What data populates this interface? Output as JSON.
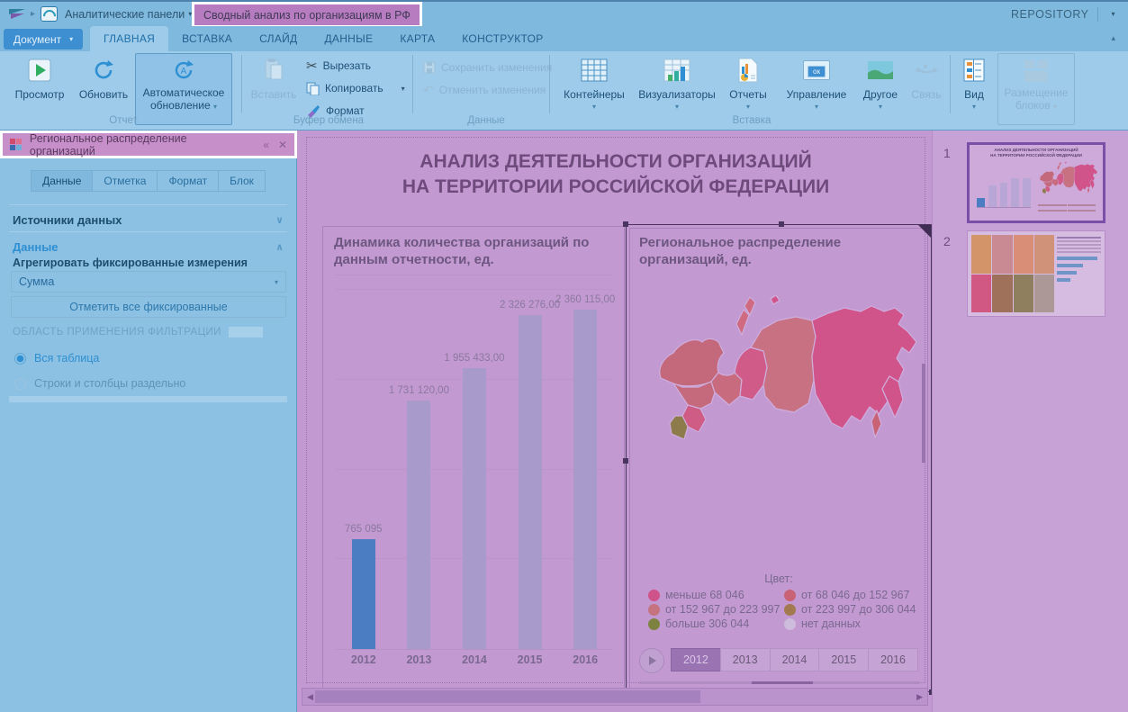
{
  "topbar": {
    "breadcrumb_panels": "Аналитические панели",
    "breadcrumb_doc": "Сводный анализ по организациям в РФ",
    "repository_label": "REPOSITORY"
  },
  "ribbon": {
    "document_button": "Документ",
    "tabs": [
      "ГЛАВНАЯ",
      "ВСТАВКА",
      "СЛАЙД",
      "ДАННЫЕ",
      "КАРТА",
      "КОНСТРУКТОР"
    ],
    "active_tab": "ГЛАВНАЯ",
    "preview": "Просмотр",
    "refresh": "Обновить",
    "auto_refresh_line1": "Автоматическое",
    "auto_refresh_line2": "обновление",
    "paste": "Вставить",
    "cut": "Вырезать",
    "copy": "Копировать",
    "format": "Формат",
    "save_changes": "Сохранить изменения",
    "cancel_changes": "Отменить изменения",
    "containers": "Контейнеры",
    "visualizers": "Визуализаторы",
    "reports": "Отчеты",
    "management": "Управление",
    "other": "Другое",
    "link": "Связь",
    "view": "Вид",
    "layout_line1": "Размещение",
    "layout_line2": "блоков",
    "ok_badge": "ок",
    "group_report": "Отчет",
    "group_clipboard": "Буфер обмена",
    "group_data": "Данные",
    "group_insert": "Вставка"
  },
  "side_panel": {
    "title": "Региональное распределение организаций",
    "tabs": [
      "Данные",
      "Отметка",
      "Формат",
      "Блок"
    ],
    "active_tab": "Данные",
    "sources_section": "Источники данных",
    "data_section": "Данные",
    "aggregate_label": "Агрегировать фиксированные измерения",
    "aggregate_value": "Сумма",
    "mark_all_button": "Отметить все фиксированные",
    "filter_caption": "ОБЛАСТЬ ПРИМЕНЕНИЯ ФИЛЬТРАЦИИ",
    "radio_whole_table": "Вся таблица",
    "radio_rows_cols": "Строки и столбцы раздельно"
  },
  "slide": {
    "title_line1": "АНАЛИЗ ДЕЯТЕЛЬНОСТИ ОРГАНИЗАЦИЙ",
    "title_line2": "НА ТЕРРИТОРИИ РОССИЙСКОЙ ФЕДЕРАЦИИ"
  },
  "chart_data": [
    {
      "type": "bar",
      "title": "Динамика количества организаций по данным отчетности, ед.",
      "categories": [
        "2012",
        "2013",
        "2014",
        "2015",
        "2016"
      ],
      "values": [
        765095,
        1731120,
        1955433,
        2326276,
        2360115
      ],
      "value_labels": [
        "765 095",
        "1 731 120,00",
        "1 955 433,00",
        "2 326 276,00",
        "2 360 115,00"
      ],
      "highlight_index": 0,
      "bar_color_highlight": "#4a7dc2",
      "bar_color_muted": "#a89aca",
      "ylim": [
        0,
        2500000
      ],
      "grid": true,
      "xlabel": "",
      "ylabel": ""
    },
    {
      "type": "map",
      "title": "Региональное распределение организаций, ед.",
      "legend_title": "Цвет:",
      "legend": [
        {
          "label": "меньше 68 046",
          "color": "#d0528b"
        },
        {
          "label": "от 68 046 до 152 967",
          "color": "#c96275"
        },
        {
          "label": "от 152 967 до 223 997",
          "color": "#c67380"
        },
        {
          "label": "от 223 997 до 306 044",
          "color": "#a3794f"
        },
        {
          "label": "больше 306 044",
          "color": "#7e8240"
        },
        {
          "label": "нет данных",
          "color": "#cdbcdb"
        }
      ],
      "years": [
        "2012",
        "2013",
        "2014",
        "2015",
        "2016"
      ],
      "active_year": "2012"
    }
  ],
  "thumbnails": {
    "slide1_number": "1",
    "slide2_number": "2",
    "slide2_blocks": [
      "#d3905e",
      "#c9858c",
      "#d98a6e",
      "#cf8f70",
      "#cf4f7a",
      "#9a6a4e",
      "#8a7a52",
      "#a8958f"
    ]
  }
}
